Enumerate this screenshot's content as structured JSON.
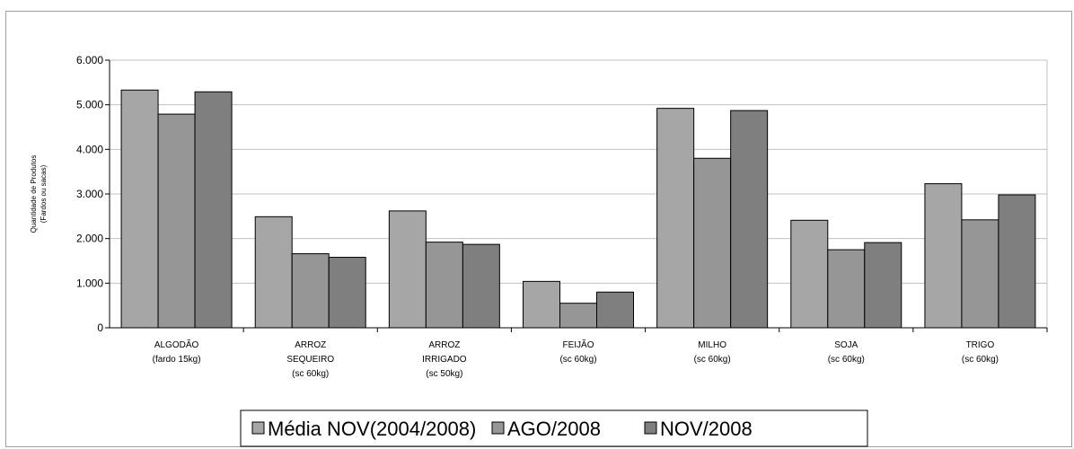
{
  "chart_data": {
    "type": "bar",
    "title": "",
    "ylabel": [
      "Quantidade de Produtos",
      "(Fardos ou sacas)"
    ],
    "ylim": [
      0,
      6000
    ],
    "yticks": [
      "0",
      "1.000",
      "2.000",
      "3.000",
      "4.000",
      "5.000",
      "6.000"
    ],
    "grid": true,
    "legend_position": "bottom",
    "categories": [
      [
        "ALGODÃO",
        "(fardo 15kg)"
      ],
      [
        "ARROZ",
        "SEQUEIRO",
        "(sc 60kg)"
      ],
      [
        "ARROZ",
        "IRRIGADO",
        "(sc 50kg)"
      ],
      [
        "FEIJÃO",
        "(sc 60kg)"
      ],
      [
        "MILHO",
        "(sc 60kg)"
      ],
      [
        "SOJA",
        "(sc 60kg)"
      ],
      [
        "TRIGO",
        "(sc 60kg)"
      ]
    ],
    "series": [
      {
        "name": "Média NOV(2004/2008)",
        "color": "#a6a6a6",
        "values": [
          5330,
          2490,
          2620,
          1040,
          4920,
          2410,
          3230
        ]
      },
      {
        "name": "AGO/2008",
        "color": "#969696",
        "values": [
          4790,
          1660,
          1920,
          550,
          3800,
          1750,
          2420
        ]
      },
      {
        "name": "NOV/2008",
        "color": "#7f7f7f",
        "values": [
          5290,
          1580,
          1870,
          800,
          4870,
          1910,
          2980
        ]
      }
    ]
  }
}
